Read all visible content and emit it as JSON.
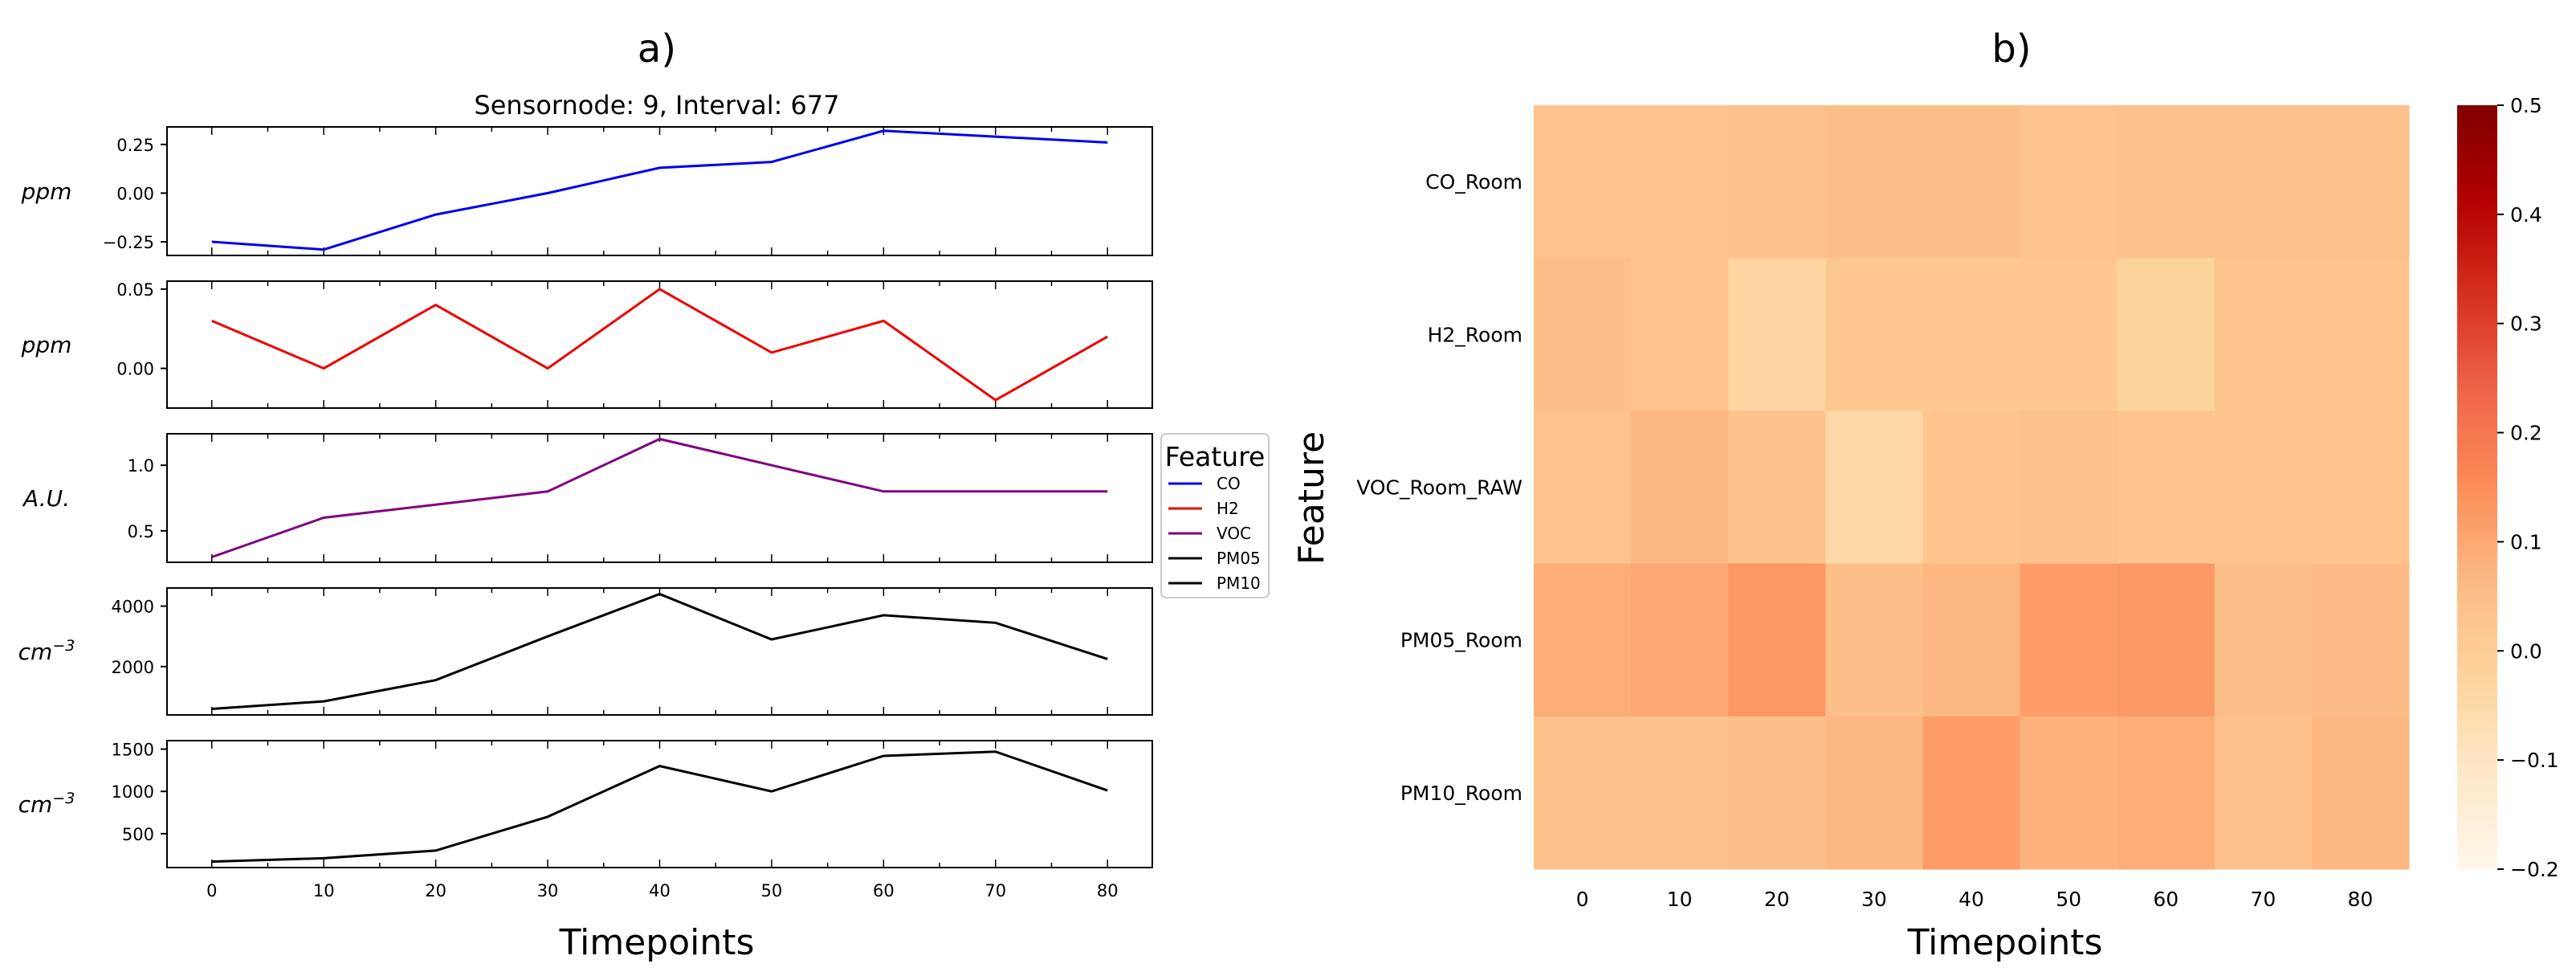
{
  "panel_a": {
    "label": "a)",
    "title": "Sensornode: 9, Interval: 677",
    "xlabel": "Timepoints"
  },
  "panel_b": {
    "label": "b)",
    "xlabel": "Timepoints",
    "ylabel": "Feature"
  },
  "legend": {
    "title": "Feature",
    "entries": [
      {
        "label": "CO",
        "color": "#0000ee"
      },
      {
        "label": "H2",
        "color": "#ee0000"
      },
      {
        "label": "VOC",
        "color": "#800080"
      },
      {
        "label": "PM05",
        "color": "#000000"
      },
      {
        "label": "PM10",
        "color": "#000000"
      }
    ]
  },
  "chart_data": [
    {
      "type": "line",
      "title": "Sensornode: 9, Interval: 677",
      "xlabel": "Timepoints",
      "x": [
        0,
        10,
        20,
        30,
        40,
        50,
        60,
        70,
        80
      ],
      "xticks": [
        "0",
        "10",
        "20",
        "30",
        "40",
        "50",
        "60",
        "70",
        "80"
      ],
      "xlim": [
        -4,
        84
      ],
      "legend_position": "right",
      "subplots": [
        {
          "series": "CO",
          "ylabel": "ppm",
          "color": "#0000ee",
          "ylim": [
            -0.32,
            0.34
          ],
          "yticks": [
            -0.25,
            0.0,
            0.25
          ],
          "yticklabels": [
            "−0.25",
            "0.00",
            "0.25"
          ],
          "values": [
            -0.25,
            -0.29,
            -0.11,
            0.0,
            0.13,
            0.16,
            0.32,
            0.29,
            0.26
          ]
        },
        {
          "series": "H2",
          "ylabel": "ppm",
          "color": "#ee0000",
          "ylim": [
            -0.025,
            0.055
          ],
          "yticks": [
            0.0,
            0.05
          ],
          "yticklabels": [
            "0.00",
            "0.05"
          ],
          "values": [
            0.03,
            0.0,
            0.04,
            0.0,
            0.05,
            0.01,
            0.03,
            -0.02,
            0.02
          ]
        },
        {
          "series": "VOC",
          "ylabel": "A.U.",
          "color": "#800080",
          "ylim": [
            0.26,
            1.24
          ],
          "yticks": [
            0.5,
            1.0
          ],
          "yticklabels": [
            "0.5",
            "1.0"
          ],
          "values": [
            0.3,
            0.6,
            0.7,
            0.8,
            1.2,
            1.0,
            0.8,
            0.8,
            0.8
          ]
        },
        {
          "series": "PM05",
          "ylabel": "cm",
          "ylabel_sup": "−3",
          "color": "#000000",
          "ylim": [
            400,
            4600
          ],
          "yticks": [
            2000,
            4000
          ],
          "yticklabels": [
            "2000",
            "4000"
          ],
          "values": [
            600,
            850,
            1550,
            3000,
            4400,
            2900,
            3700,
            3450,
            2250
          ]
        },
        {
          "series": "PM10",
          "ylabel": "cm",
          "ylabel_sup": "−3",
          "color": "#000000",
          "ylim": [
            100,
            1600
          ],
          "yticks": [
            500,
            1000,
            1500
          ],
          "yticklabels": [
            "500",
            "1000",
            "1500"
          ],
          "values": [
            170,
            210,
            300,
            700,
            1300,
            1000,
            1420,
            1470,
            1010
          ]
        }
      ]
    },
    {
      "type": "heatmap",
      "xlabel": "Timepoints",
      "ylabel": "Feature",
      "x": [
        "0",
        "10",
        "20",
        "30",
        "40",
        "50",
        "60",
        "70",
        "80"
      ],
      "y": [
        "CO_Room",
        "H2_Room",
        "VOC_Room_RAW",
        "PM05_Room",
        "PM10_Room"
      ],
      "values": [
        [
          0.03,
          0.03,
          0.04,
          0.05,
          0.05,
          0.03,
          0.04,
          0.04,
          0.04
        ],
        [
          0.05,
          0.03,
          -0.03,
          0.02,
          0.02,
          0.02,
          -0.02,
          0.03,
          0.03
        ],
        [
          0.03,
          0.07,
          0.04,
          -0.04,
          0.03,
          0.04,
          0.03,
          0.03,
          0.03
        ],
        [
          0.09,
          0.1,
          0.13,
          0.05,
          0.07,
          0.12,
          0.13,
          0.05,
          0.06
        ],
        [
          0.04,
          0.04,
          0.05,
          0.07,
          0.12,
          0.08,
          0.09,
          0.04,
          0.07
        ]
      ],
      "colorbar": {
        "colormap": "OrRd",
        "range": [
          -0.2,
          0.5
        ],
        "ticks": [
          -0.2,
          -0.1,
          0.0,
          0.1,
          0.2,
          0.3,
          0.4,
          0.5
        ],
        "ticklabels": [
          "−0.2",
          "−0.1",
          "0.0",
          "0.1",
          "0.2",
          "0.3",
          "0.4",
          "0.5"
        ]
      }
    }
  ]
}
